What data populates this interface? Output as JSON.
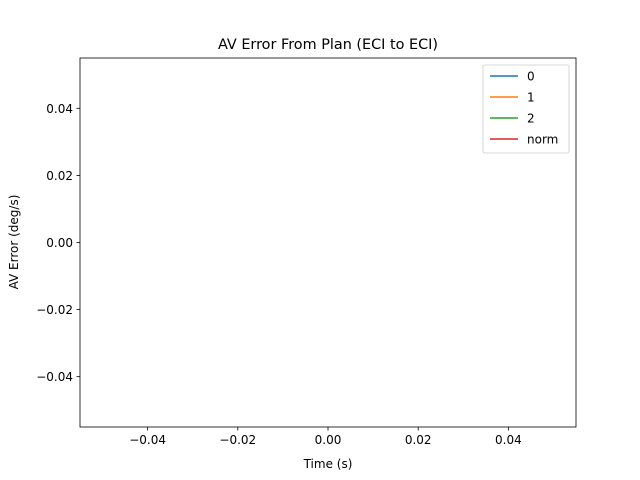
{
  "chart_data": {
    "type": "line",
    "title": "AV Error From Plan (ECI to ECI)",
    "xlabel": "Time (s)",
    "ylabel": "AV Error (deg/s)",
    "xlim": [
      -0.055,
      0.055
    ],
    "ylim": [
      -0.055,
      0.055
    ],
    "xticks": [
      -0.04,
      -0.02,
      0.0,
      0.02,
      0.04
    ],
    "yticks": [
      -0.04,
      -0.02,
      0.0,
      0.02,
      0.04
    ],
    "xtick_labels": [
      "−0.04",
      "−0.02",
      "0.00",
      "0.02",
      "0.04"
    ],
    "ytick_labels": [
      "−0.04",
      "−0.02",
      "0.00",
      "0.02",
      "0.04"
    ],
    "grid": false,
    "legend_position": "top-right",
    "series": [
      {
        "name": "0",
        "color": "#1f77b4",
        "x": [],
        "y": []
      },
      {
        "name": "1",
        "color": "#ff7f0e",
        "x": [],
        "y": []
      },
      {
        "name": "2",
        "color": "#2ca02c",
        "x": [],
        "y": []
      },
      {
        "name": "norm",
        "color": "#d62728",
        "x": [],
        "y": []
      }
    ]
  }
}
